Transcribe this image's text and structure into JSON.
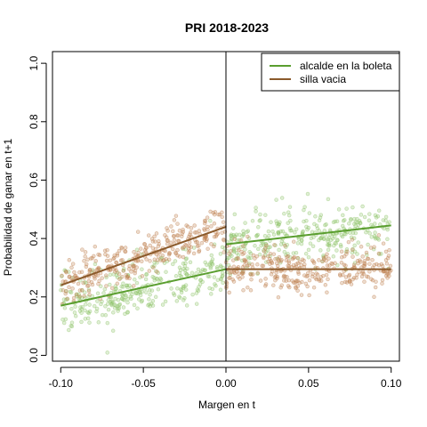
{
  "chart_data": {
    "type": "scatter",
    "title": "PRI 2018-2023",
    "xlabel": "Margen en t",
    "ylabel": "Probabilidad de ganar en t+1",
    "xlim": [
      -0.105,
      0.105
    ],
    "ylim": [
      -0.02,
      1.04
    ],
    "xticks": [
      -0.1,
      -0.05,
      0.0,
      0.05,
      0.1
    ],
    "xtick_labels": [
      "-0.10",
      "-0.05",
      "0.00",
      "0.05",
      "0.10"
    ],
    "yticks": [
      0.0,
      0.2,
      0.4,
      0.6,
      0.8,
      1.0
    ],
    "ytick_labels": [
      "0.0",
      "0.2",
      "0.4",
      "0.6",
      "0.8",
      "1.0"
    ],
    "cutoff": 0.0,
    "legend_position": "top-right",
    "series": [
      {
        "name": "alcalde en la boleta",
        "color": "#5a9e2f",
        "point_color": "#8fc46a",
        "fit_left": [
          [
            -0.1,
            0.17
          ],
          [
            0.0,
            0.295
          ]
        ],
        "fit_right": [
          [
            0.0,
            0.38
          ],
          [
            0.1,
            0.445
          ]
        ],
        "noise_sd": 0.05,
        "n_points_per_side": 320
      },
      {
        "name": "silla vacia",
        "color": "#8b5a2b",
        "point_color": "#c08050",
        "fit_left": [
          [
            -0.1,
            0.24
          ],
          [
            0.0,
            0.44
          ]
        ],
        "fit_right": [
          [
            0.0,
            0.295
          ],
          [
            0.1,
            0.295
          ]
        ],
        "noise_sd": 0.04,
        "n_points_per_side": 320
      }
    ]
  }
}
